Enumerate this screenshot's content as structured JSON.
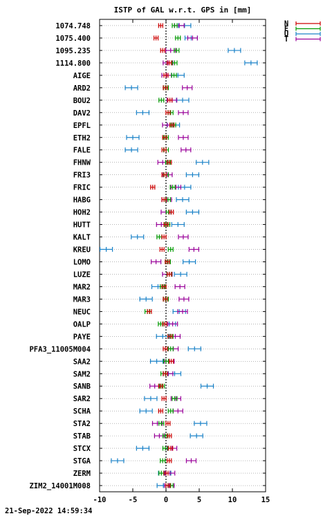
{
  "chart_data": {
    "type": "scatter",
    "title": "ISTP of GAL w.r.t. GPS in [mm]",
    "xlim": [
      -10,
      15
    ],
    "xticks": [
      "-10",
      "-5",
      "0",
      "5",
      "10",
      "15"
    ],
    "grid": "horizontal dotted",
    "legend_position": "top-right",
    "series": [
      {
        "key": "N",
        "color": "#cc0000"
      },
      {
        "key": "E",
        "color": "#009900"
      },
      {
        "key": "U",
        "color": "#1a82c8"
      },
      {
        "key": "T",
        "color": "#990099"
      }
    ],
    "stations": [
      {
        "label": "1074.748",
        "N": -0.8,
        "E": 1.3,
        "U": 2.8,
        "T": 2.0
      },
      {
        "label": "1075.400",
        "N": -1.5,
        "E": 1.8,
        "U": 3.8,
        "T": 4.0
      },
      {
        "label": "1095.235",
        "N": -0.5,
        "E": 1.6,
        "U": 10.3,
        "T": 0.7
      },
      {
        "label": "1114.800",
        "N": 0.5,
        "E": 1.3,
        "U": 12.8,
        "T": 0.3
      },
      {
        "label": "AIGE",
        "N": 0.0,
        "E": 1.2,
        "U": 1.8,
        "T": 0.1
      },
      {
        "label": "ARD2",
        "N": -0.1,
        "E": 0.0,
        "U": -5.2,
        "T": 3.2
      },
      {
        "label": "BOU2",
        "N": 0.6,
        "E": -0.7,
        "U": 2.5,
        "T": 0.9
      },
      {
        "label": "DAV2",
        "N": 0.3,
        "E": 0.7,
        "U": -3.5,
        "T": 2.6
      },
      {
        "label": "EPFL",
        "N": 0.9,
        "E": 1.1,
        "U": 1.1,
        "T": 0.2
      },
      {
        "label": "ETH2",
        "N": -0.2,
        "E": 0.0,
        "U": -5.0,
        "T": 2.6
      },
      {
        "label": "FALE",
        "N": -0.3,
        "E": 0.0,
        "U": -5.2,
        "T": 3.0
      },
      {
        "label": "FHNW",
        "N": 0.5,
        "E": 0.3,
        "U": 5.5,
        "T": -0.5
      },
      {
        "label": "FRI3",
        "N": -0.3,
        "E": 0.0,
        "U": 4.0,
        "T": 0.2
      },
      {
        "label": "FRIC",
        "N": -2.0,
        "E": 1.0,
        "U": 2.8,
        "T": 1.5
      },
      {
        "label": "HABG",
        "N": -0.3,
        "E": 0.3,
        "U": 2.5,
        "T": 0.1
      },
      {
        "label": "HOH2",
        "N": 0.8,
        "E": 0.4,
        "U": 4.0,
        "T": 0.0
      },
      {
        "label": "HUTT",
        "N": 0.0,
        "E": 0.2,
        "U": 1.8,
        "T": -0.7
      },
      {
        "label": "KALT",
        "N": -0.3,
        "E": -1.0,
        "U": -4.3,
        "T": 2.6
      },
      {
        "label": "KREU",
        "N": -0.6,
        "E": 0.7,
        "U": -9.0,
        "T": 4.2
      },
      {
        "label": "LOMO",
        "N": 0.2,
        "E": 0.3,
        "U": 3.5,
        "T": -1.5
      },
      {
        "label": "LUZE",
        "N": 0.5,
        "E": 0.5,
        "U": 2.2,
        "T": 0.2
      },
      {
        "label": "MAR2",
        "N": -0.3,
        "E": -0.5,
        "U": -1.2,
        "T": 2.1
      },
      {
        "label": "MAR3",
        "N": -0.1,
        "E": 0.0,
        "U": -3.0,
        "T": 2.7
      },
      {
        "label": "NEUC",
        "N": -2.5,
        "E": -2.8,
        "U": 2.0,
        "T": 2.5
      },
      {
        "label": "OALP",
        "N": -0.2,
        "E": -0.8,
        "U": 0.5,
        "T": 1.0
      },
      {
        "label": "PAYE",
        "N": 0.6,
        "E": 0.7,
        "U": -0.5,
        "T": 1.4
      },
      {
        "label": "PFA3_11005M004",
        "N": -0.1,
        "E": 0.7,
        "U": 4.3,
        "T": 1.1
      },
      {
        "label": "SAA2",
        "N": 0.8,
        "E": 0.0,
        "U": -1.4,
        "T": 0.5
      },
      {
        "label": "SAM2",
        "N": -0.1,
        "E": -0.4,
        "U": 1.3,
        "T": 0.3
      },
      {
        "label": "SANB",
        "N": -0.8,
        "E": -0.6,
        "U": 6.2,
        "T": -1.7
      },
      {
        "label": "SAR2",
        "N": -0.3,
        "E": 1.3,
        "U": -2.3,
        "T": 1.5
      },
      {
        "label": "SCHA",
        "N": -0.8,
        "E": 0.7,
        "U": -3.0,
        "T": 1.8
      },
      {
        "label": "STA2",
        "N": 0.3,
        "E": -0.7,
        "U": 5.2,
        "T": -1.3
      },
      {
        "label": "STAB",
        "N": 0.5,
        "E": -0.1,
        "U": 4.6,
        "T": -1.0
      },
      {
        "label": "STCX",
        "N": 0.7,
        "E": -0.1,
        "U": -3.5,
        "T": 0.9
      },
      {
        "label": "STGA",
        "N": 0.5,
        "E": -0.5,
        "U": -7.3,
        "T": 3.8
      },
      {
        "label": "ZERM",
        "N": 0.0,
        "E": -0.7,
        "U": -0.2,
        "T": 0.6
      },
      {
        "label": "ZIM2_14001M008",
        "N": 0.3,
        "E": 0.7,
        "U": -0.4,
        "T": 0.5
      }
    ]
  },
  "footer": {
    "timestamp": "21-Sep-2022 14:59:34"
  }
}
